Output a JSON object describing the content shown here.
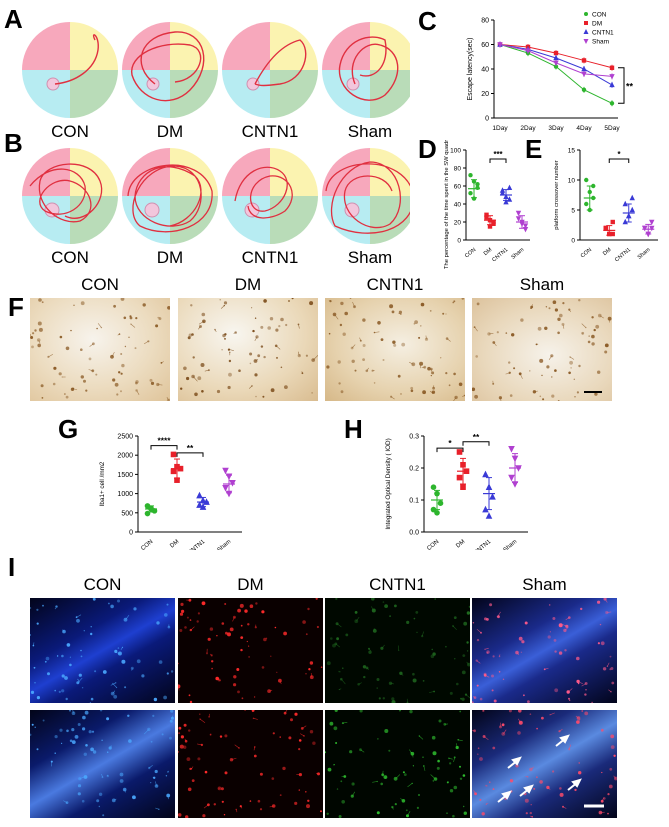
{
  "panels": {
    "A": "A",
    "B": "B",
    "C": "C",
    "D": "D",
    "E": "E",
    "F": "F",
    "G": "G",
    "H": "H",
    "I": "I"
  },
  "groups": [
    "CON",
    "DM",
    "CNTN1",
    "Sham"
  ],
  "colors": {
    "CON": "#2db52d",
    "DM": "#e8202a",
    "CNTN1": "#3a3ad6",
    "Sham": "#b040d0",
    "quadrant_pink": "#f7a8bc",
    "quadrant_yellow": "#fbf3b0",
    "quadrant_cyan": "#b7ecf2",
    "quadrant_green": "#b9dcb8",
    "path": "#e03040"
  },
  "maze": {
    "rowA_labels": [
      "CON",
      "DM",
      "CNTN1",
      "Sham"
    ],
    "rowB_labels": [
      "CON",
      "DM",
      "CNTN1",
      "Sham"
    ]
  },
  "micrographs": {
    "F_labels": [
      "CON",
      "DM",
      "CNTN1",
      "Sham"
    ],
    "I_labels": [
      "CON",
      "DM",
      "CNTN1",
      "Sham"
    ]
  },
  "chart_data": [
    {
      "id": "C",
      "type": "line",
      "ylabel": "Escape latency(sec)",
      "x": [
        "1Day",
        "2Day",
        "3Day",
        "4Day",
        "5Day"
      ],
      "ylim": [
        0,
        80
      ],
      "yticks": [
        0,
        20,
        40,
        60,
        80
      ],
      "legend": "top-right",
      "series": [
        {
          "name": "CON",
          "values": [
            60,
            53,
            42,
            23,
            12
          ]
        },
        {
          "name": "DM",
          "values": [
            60,
            58,
            53,
            47,
            41
          ]
        },
        {
          "name": "CNTN1",
          "values": [
            60,
            56,
            49,
            40,
            27
          ]
        },
        {
          "name": "Sham",
          "values": [
            60,
            55,
            45,
            36,
            34
          ]
        }
      ],
      "annotation": "**"
    },
    {
      "id": "D",
      "type": "scatter",
      "ylabel": "The percentage of the time spent in the SW quadrant (%)",
      "categories": [
        "CON",
        "DM",
        "CNTN1",
        "Sham"
      ],
      "ylim": [
        0,
        100
      ],
      "yticks": [
        0,
        20,
        40,
        60,
        80,
        100
      ],
      "points": [
        [
          72,
          65,
          58,
          52,
          46,
          62
        ],
        [
          28,
          22,
          18,
          25,
          15,
          20
        ],
        [
          55,
          48,
          45,
          52,
          42,
          58
        ],
        [
          24,
          20,
          16,
          30,
          18,
          12
        ]
      ],
      "means": [
        57,
        22,
        50,
        20
      ],
      "sds": [
        10,
        5,
        6,
        7
      ],
      "annotation": "***"
    },
    {
      "id": "E",
      "type": "scatter",
      "ylabel": "platform crossover number",
      "categories": [
        "CON",
        "DM",
        "CNTN1",
        "Sham"
      ],
      "ylim": [
        0,
        15
      ],
      "yticks": [
        0,
        5,
        10,
        15
      ],
      "points": [
        [
          10,
          8,
          7,
          6,
          5,
          9
        ],
        [
          2,
          1,
          3,
          2,
          1,
          1
        ],
        [
          6,
          4,
          5,
          3,
          4,
          7
        ],
        [
          2,
          1,
          3,
          2,
          1,
          2
        ]
      ],
      "means": [
        7,
        1.6,
        4.5,
        1.8
      ],
      "sds": [
        2,
        0.8,
        1.5,
        0.8
      ],
      "annotation": "*"
    },
    {
      "id": "G",
      "type": "scatter",
      "ylabel": "Iba1+ cell /mm2",
      "categories": [
        "CON",
        "DM",
        "CNTN1",
        "Sham"
      ],
      "ylim": [
        0,
        2500
      ],
      "yticks": [
        0,
        500,
        1000,
        1500,
        2000,
        2500
      ],
      "points": [
        [
          680,
          620,
          550,
          480,
          600
        ],
        [
          2020,
          1700,
          1650,
          1580,
          1350
        ],
        [
          950,
          820,
          780,
          700,
          650
        ],
        [
          1600,
          1450,
          1280,
          1150,
          1000
        ]
      ],
      "means": [
        600,
        1650,
        780,
        1250
      ],
      "sds": [
        80,
        250,
        120,
        230
      ],
      "annotation": [
        "****",
        "**"
      ]
    },
    {
      "id": "H",
      "type": "scatter",
      "ylabel": "Integrated Optical Density ( IOD)",
      "categories": [
        "CON",
        "DM",
        "CNTN1",
        "Sham"
      ],
      "ylim": [
        0,
        0.3
      ],
      "yticks": [
        0.0,
        0.1,
        0.2,
        0.3
      ],
      "points": [
        [
          0.14,
          0.12,
          0.09,
          0.07,
          0.06
        ],
        [
          0.25,
          0.21,
          0.19,
          0.17,
          0.14
        ],
        [
          0.18,
          0.14,
          0.11,
          0.07,
          0.05
        ],
        [
          0.26,
          0.23,
          0.2,
          0.17,
          0.15
        ]
      ],
      "means": [
        0.1,
        0.19,
        0.12,
        0.2
      ],
      "sds": [
        0.03,
        0.04,
        0.05,
        0.045
      ],
      "annotation": [
        "*",
        "**"
      ]
    }
  ]
}
